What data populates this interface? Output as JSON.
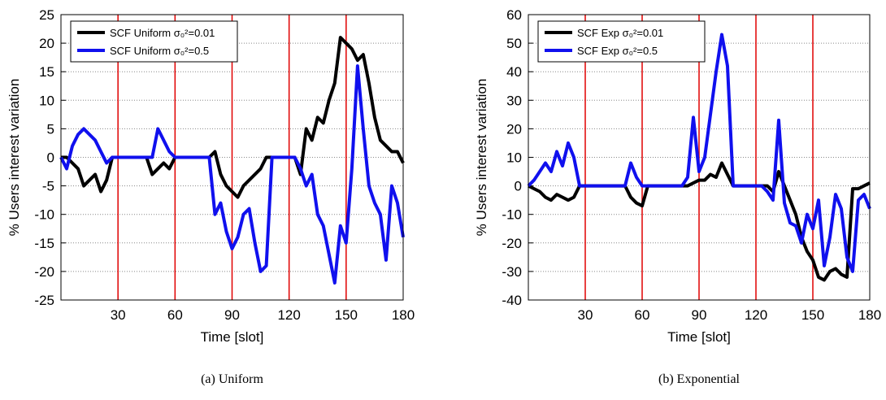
{
  "chart_data": [
    {
      "type": "line",
      "caption": "(a)  Uniform",
      "xlabel": "Time [slot]",
      "ylabel": "% Users interest variation",
      "xlim": [
        0,
        180
      ],
      "xticks": [
        30,
        60,
        90,
        120,
        150,
        180
      ],
      "ylim": [
        -25,
        25
      ],
      "yticks": [
        -25,
        -20,
        -15,
        -10,
        -5,
        0,
        5,
        10,
        15,
        20,
        25
      ],
      "grid": true,
      "legend": "upper left",
      "vlines": [
        30,
        60,
        90,
        120,
        150
      ],
      "vline_color": "#e00000",
      "x": [
        0,
        3,
        6,
        9,
        12,
        15,
        18,
        21,
        24,
        27,
        30,
        33,
        36,
        39,
        42,
        45,
        48,
        51,
        54,
        57,
        60,
        63,
        66,
        69,
        72,
        75,
        78,
        81,
        84,
        87,
        90,
        93,
        96,
        99,
        102,
        105,
        108,
        111,
        114,
        117,
        120,
        123,
        126,
        129,
        132,
        135,
        138,
        141,
        144,
        147,
        150,
        153,
        156,
        159,
        162,
        165,
        168,
        171,
        174,
        177,
        180
      ],
      "series": [
        {
          "name": "SCF Uniform σ₀²=0.01",
          "color": "#000000",
          "values": [
            0,
            0,
            -1,
            -2,
            -5,
            -4,
            -3,
            -6,
            -4,
            0,
            0,
            0,
            0,
            0,
            0,
            0,
            -3,
            -2,
            -1,
            -2,
            0,
            0,
            0,
            0,
            0,
            0,
            0,
            1,
            -3,
            -5,
            -6,
            -7,
            -5,
            -4,
            -3,
            -2,
            0,
            0,
            0,
            0,
            0,
            0,
            -3,
            5,
            3,
            7,
            6,
            10,
            13,
            21,
            20,
            19,
            17,
            18,
            13,
            7,
            3,
            2,
            1,
            1,
            -1
          ]
        },
        {
          "name": "SCF Uniform σ₀²=0.5",
          "color": "#1010ee",
          "values": [
            0,
            -2,
            2,
            4,
            5,
            4,
            3,
            1,
            -1,
            0,
            0,
            0,
            0,
            0,
            0,
            0,
            0,
            5,
            3,
            1,
            0,
            0,
            0,
            0,
            0,
            0,
            0,
            -10,
            -8,
            -13,
            -16,
            -14,
            -10,
            -9,
            -15,
            -20,
            -19,
            0,
            0,
            0,
            0,
            0,
            -2,
            -5,
            -3,
            -10,
            -12,
            -17,
            -22,
            -12,
            -15,
            -2,
            16,
            5,
            -5,
            -8,
            -10,
            -18,
            -5,
            -8,
            -14
          ]
        }
      ]
    },
    {
      "type": "line",
      "caption": "(b)  Exponential",
      "xlabel": "Time [slot]",
      "ylabel": "% Users interest variation",
      "xlim": [
        0,
        180
      ],
      "xticks": [
        30,
        60,
        90,
        120,
        150,
        180
      ],
      "ylim": [
        -40,
        60
      ],
      "yticks": [
        -40,
        -30,
        -20,
        -10,
        0,
        10,
        20,
        30,
        40,
        50,
        60
      ],
      "grid": true,
      "legend": "upper left",
      "vlines": [
        30,
        60,
        90,
        120,
        150
      ],
      "vline_color": "#e00000",
      "x": [
        0,
        3,
        6,
        9,
        12,
        15,
        18,
        21,
        24,
        27,
        30,
        33,
        36,
        39,
        42,
        45,
        48,
        51,
        54,
        57,
        60,
        63,
        66,
        69,
        72,
        75,
        78,
        81,
        84,
        87,
        90,
        93,
        96,
        99,
        102,
        105,
        108,
        111,
        114,
        117,
        120,
        123,
        126,
        129,
        132,
        135,
        138,
        141,
        144,
        147,
        150,
        153,
        156,
        159,
        162,
        165,
        168,
        171,
        174,
        177,
        180
      ],
      "series": [
        {
          "name": "SCF Exp σ₀²=0.01",
          "color": "#000000",
          "values": [
            0,
            -1,
            -2,
            -4,
            -5,
            -3,
            -4,
            -5,
            -4,
            0,
            0,
            0,
            0,
            0,
            0,
            0,
            0,
            0,
            -4,
            -6,
            -7,
            0,
            0,
            0,
            0,
            0,
            0,
            0,
            0,
            1,
            2,
            2,
            4,
            3,
            8,
            4,
            0,
            0,
            0,
            0,
            0,
            0,
            0,
            -2,
            5,
            0,
            -5,
            -10,
            -18,
            -23,
            -26,
            -32,
            -33,
            -30,
            -29,
            -31,
            -32,
            -1,
            -1,
            0,
            1
          ]
        },
        {
          "name": "SCF Exp σ₀²=0.5",
          "color": "#1010ee",
          "values": [
            0,
            2,
            5,
            8,
            5,
            12,
            7,
            15,
            10,
            0,
            0,
            0,
            0,
            0,
            0,
            0,
            0,
            0,
            8,
            3,
            0,
            0,
            0,
            0,
            0,
            0,
            0,
            0,
            3,
            24,
            5,
            10,
            25,
            40,
            53,
            42,
            0,
            0,
            0,
            0,
            0,
            0,
            -2,
            -5,
            23,
            -6,
            -13,
            -14,
            -20,
            -10,
            -15,
            -5,
            -28,
            -18,
            -3,
            -8,
            -25,
            -30,
            -5,
            -3,
            -8
          ]
        }
      ]
    }
  ]
}
